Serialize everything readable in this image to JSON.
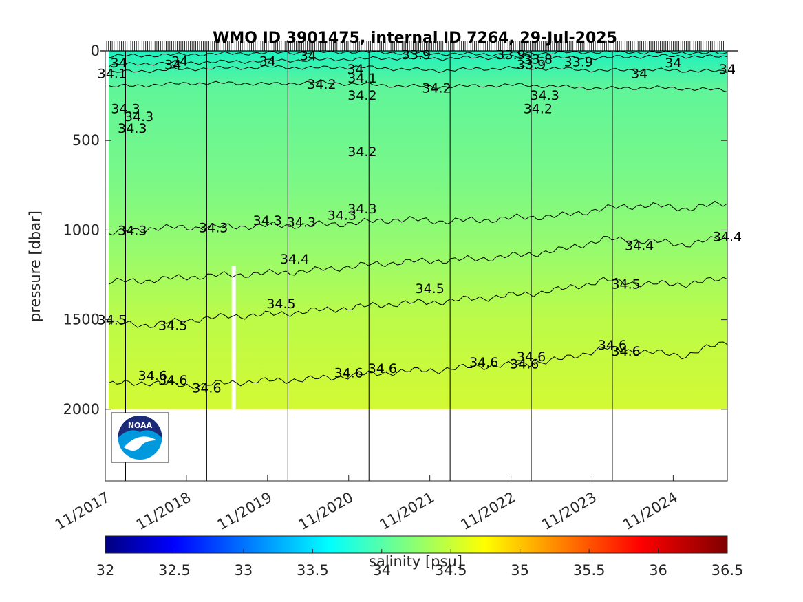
{
  "chart_data": {
    "type": "heatmap",
    "title": "WMO ID 3901475, internal ID 7264, 29-Jul-2025",
    "ylabel": "pressure [dbar]",
    "y_reversed": true,
    "ylim": [
      0,
      2400
    ],
    "yticks": [
      0,
      500,
      1000,
      1500,
      2000
    ],
    "xlim": [
      "2017-11",
      "2025-07"
    ],
    "xtick_labels": [
      "11/2017",
      "11/2018",
      "11/2019",
      "11/2020",
      "11/2021",
      "11/2022",
      "11/2023",
      "11/2024"
    ],
    "data_depth_max": 2000,
    "missing_profile_approx": "2019-06",
    "colorbar": {
      "label": "salinity [psu]",
      "range": [
        32,
        36.5
      ],
      "ticks": [
        "32",
        "32.5",
        "33",
        "33.5",
        "34",
        "34.5",
        "35",
        "35.5",
        "36",
        "36.5"
      ],
      "colormap": "jet"
    },
    "contours": [
      {
        "level": 33.9,
        "depths": [
          30,
          25,
          20,
          15,
          10,
          8,
          5,
          10,
          15,
          20,
          15,
          10,
          5,
          8,
          10,
          15
        ]
      },
      {
        "level": 34.0,
        "depths": [
          80,
          70,
          65,
          60,
          55,
          50,
          45,
          40,
          42,
          38,
          35,
          40,
          38,
          30,
          30,
          35
        ]
      },
      {
        "level": 34.1,
        "depths": [
          120,
          110,
          100,
          95,
          90,
          95,
          90,
          100,
          110,
          100,
          95,
          100,
          110,
          105,
          110,
          115
        ]
      },
      {
        "level": 34.2,
        "depths": [
          200,
          190,
          180,
          180,
          185,
          175,
          185,
          195,
          200,
          195,
          190,
          200,
          210,
          205,
          210,
          220
        ]
      },
      {
        "level": 34.3,
        "depths": [
          1020,
          990,
          985,
          980,
          975,
          970,
          960,
          940,
          950,
          945,
          930,
          920,
          880,
          860,
          880,
          850
        ]
      },
      {
        "level": 34.4,
        "depths": [
          1290,
          1280,
          1260,
          1250,
          1240,
          1225,
          1200,
          1180,
          1170,
          1160,
          1140,
          1110,
          1050,
          1060,
          1080,
          1040
        ]
      },
      {
        "level": 34.5,
        "depths": [
          1520,
          1530,
          1500,
          1480,
          1470,
          1450,
          1430,
          1410,
          1400,
          1380,
          1360,
          1330,
          1280,
          1300,
          1300,
          1270
        ]
      },
      {
        "level": 34.6,
        "depths": [
          1860,
          1850,
          1870,
          1850,
          1840,
          1830,
          1810,
          1790,
          1780,
          1760,
          1750,
          1720,
          1660,
          1680,
          1700,
          1620
        ]
      }
    ],
    "contour_labels": [
      {
        "text": "34",
        "x": "2018-01",
        "y": 65
      },
      {
        "text": "34.1",
        "x": "2017-12",
        "y": 125
      },
      {
        "text": "34.3",
        "x": "2018-02",
        "y": 320
      },
      {
        "text": "34.3",
        "x": "2018-04",
        "y": 365
      },
      {
        "text": "34.3",
        "x": "2018-03",
        "y": 430
      },
      {
        "text": "34",
        "x": "2018-09",
        "y": 75
      },
      {
        "text": "34",
        "x": "2018-10",
        "y": 55
      },
      {
        "text": "34",
        "x": "2019-11",
        "y": 55
      },
      {
        "text": "34",
        "x": "2020-05",
        "y": 25
      },
      {
        "text": "33.9",
        "x": "2021-09",
        "y": 20
      },
      {
        "text": "34",
        "x": "2020-12",
        "y": 100
      },
      {
        "text": "34.1",
        "x": "2021-01",
        "y": 150
      },
      {
        "text": "34.2",
        "x": "2020-07",
        "y": 185
      },
      {
        "text": "34.2",
        "x": "2021-01",
        "y": 245
      },
      {
        "text": "34.2",
        "x": "2021-12",
        "y": 205
      },
      {
        "text": "34.2",
        "x": "2021-01",
        "y": 560
      },
      {
        "text": "33.9",
        "x": "2022-11",
        "y": 20
      },
      {
        "text": "33.8",
        "x": "2023-03",
        "y": 45
      },
      {
        "text": "33.9",
        "x": "2023-02",
        "y": 75
      },
      {
        "text": "34.3",
        "x": "2023-04",
        "y": 245
      },
      {
        "text": "34.2",
        "x": "2023-03",
        "y": 320
      },
      {
        "text": "33.9",
        "x": "2023-09",
        "y": 60
      },
      {
        "text": "34",
        "x": "2024-06",
        "y": 125
      },
      {
        "text": "34",
        "x": "2024-11",
        "y": 65
      },
      {
        "text": "34",
        "x": "2025-07",
        "y": 100
      },
      {
        "text": "34.3",
        "x": "2018-03",
        "y": 1000
      },
      {
        "text": "34.3",
        "x": "2019-03",
        "y": 985
      },
      {
        "text": "34.3",
        "x": "2019-11",
        "y": 945
      },
      {
        "text": "34.3",
        "x": "2020-04",
        "y": 955
      },
      {
        "text": "34.3",
        "x": "2020-10",
        "y": 915
      },
      {
        "text": "34.3",
        "x": "2021-01",
        "y": 880
      },
      {
        "text": "34.4",
        "x": "2020-03",
        "y": 1160
      },
      {
        "text": "34.4",
        "x": "2024-06",
        "y": 1085
      },
      {
        "text": "34.4",
        "x": "2025-07",
        "y": 1035
      },
      {
        "text": "34.5",
        "x": "2017-12",
        "y": 1500
      },
      {
        "text": "34.5",
        "x": "2018-09",
        "y": 1530
      },
      {
        "text": "34.5",
        "x": "2020-01",
        "y": 1410
      },
      {
        "text": "34.5",
        "x": "2021-11",
        "y": 1325
      },
      {
        "text": "34.5",
        "x": "2024-04",
        "y": 1300
      },
      {
        "text": "34.6",
        "x": "2018-06",
        "y": 1810
      },
      {
        "text": "34.6",
        "x": "2018-09",
        "y": 1835
      },
      {
        "text": "34.6",
        "x": "2019-02",
        "y": 1880
      },
      {
        "text": "34.6",
        "x": "2020-11",
        "y": 1795
      },
      {
        "text": "34.6",
        "x": "2021-04",
        "y": 1770
      },
      {
        "text": "34.6",
        "x": "2022-07",
        "y": 1735
      },
      {
        "text": "34.6",
        "x": "2023-01",
        "y": 1745
      },
      {
        "text": "34.6",
        "x": "2023-02",
        "y": 1705
      },
      {
        "text": "34.6",
        "x": "2024-02",
        "y": 1640
      },
      {
        "text": "34.6",
        "x": "2024-04",
        "y": 1675
      }
    ],
    "grid": false
  },
  "logo": {
    "text": "NOAA"
  }
}
